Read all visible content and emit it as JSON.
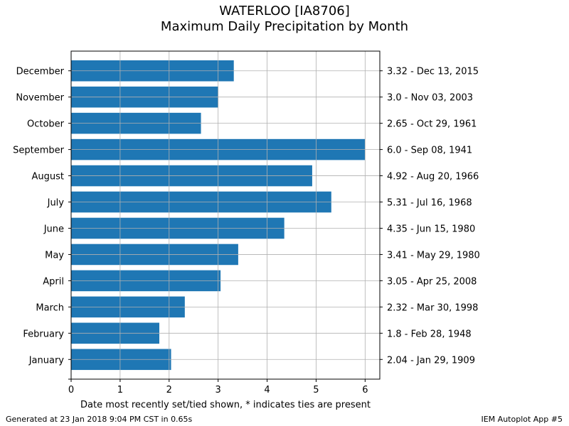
{
  "chart_data": {
    "type": "bar",
    "orientation": "horizontal",
    "title": "WATERLOO [IA8706]",
    "subtitle": "Maximum Daily Precipitation by Month",
    "xlabel": "Date most recently set/tied shown, * indicates ties are present",
    "ylabel": "",
    "xlim": [
      0,
      6.3
    ],
    "xticks": [
      "0",
      "1",
      "2",
      "3",
      "4",
      "5",
      "6"
    ],
    "grid": true,
    "categories": [
      "January",
      "February",
      "March",
      "April",
      "May",
      "June",
      "July",
      "August",
      "September",
      "October",
      "November",
      "December"
    ],
    "values": [
      2.04,
      1.8,
      2.32,
      3.05,
      3.41,
      4.35,
      5.31,
      4.92,
      6.0,
      2.65,
      3.0,
      3.32
    ],
    "right_labels": [
      "2.04 - Jan 29, 1909",
      "1.8 - Feb 28, 1948",
      "2.32 - Mar 30, 1998",
      "3.05 - Apr 25, 2008",
      "3.41 - May 29, 1980",
      "4.35 - Jun 15, 1980",
      "5.31 - Jul 16, 1968",
      "4.92 - Aug 20, 1966",
      "6.0 - Sep 08, 1941",
      "2.65 - Oct 29, 1961",
      "3.0 - Nov 03, 2003",
      "3.32 - Dec 13, 2015"
    ],
    "bar_color": "#1f77b4"
  },
  "footer": {
    "generated": "Generated at 23 Jan 2018 9:04 PM CST in 0.65s",
    "app": "IEM Autoplot App #5"
  }
}
